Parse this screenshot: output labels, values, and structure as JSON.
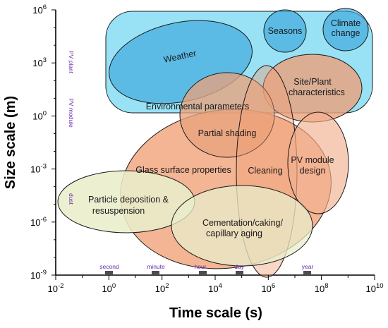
{
  "figure": {
    "xlabel": "Time scale (s)",
    "ylabel": "Size scale (m)"
  },
  "axes": {
    "x_ticks": [
      {
        "base": "10",
        "exp": "-2",
        "value": -2
      },
      {
        "base": "10",
        "exp": "0",
        "value": 0
      },
      {
        "base": "10",
        "exp": "2",
        "value": 2
      },
      {
        "base": "10",
        "exp": "4",
        "value": 4
      },
      {
        "base": "10",
        "exp": "6",
        "value": 6
      },
      {
        "base": "10",
        "exp": "8",
        "value": 8
      },
      {
        "base": "10",
        "exp": "10",
        "value": 10
      }
    ],
    "y_ticks": [
      {
        "base": "10",
        "exp": "6",
        "value": 6
      },
      {
        "base": "10",
        "exp": "3",
        "value": 3
      },
      {
        "base": "10",
        "exp": "0",
        "value": 0
      },
      {
        "base": "10",
        "exp": "-3",
        "value": -3
      },
      {
        "base": "10",
        "exp": "-6",
        "value": -6
      },
      {
        "base": "10",
        "exp": "-9",
        "value": -9
      }
    ],
    "x_range_log10": [
      -2,
      10
    ],
    "y_range_log10": [
      -9,
      6
    ],
    "scale": "log"
  },
  "time_references": [
    {
      "label": "second",
      "log10_s": 0
    },
    {
      "label": "minute",
      "log10_s": 1.78
    },
    {
      "label": "hour",
      "log10_s": 3.56
    },
    {
      "label": "day",
      "log10_s": 4.94
    },
    {
      "label": "year",
      "log10_s": 7.5
    }
  ],
  "size_references": [
    {
      "label": "PV plant",
      "log10_m": 3
    },
    {
      "label": "PV module",
      "log10_m": 0.3
    },
    {
      "label": "dust",
      "log10_m": -5
    }
  ],
  "regions": [
    {
      "id": "environmental",
      "lines": [
        "Environmental parameters"
      ],
      "color": "#45c8ec"
    },
    {
      "id": "weather",
      "lines": [
        "Weather"
      ],
      "color": "#3aa6dc"
    },
    {
      "id": "seasons",
      "lines": [
        "Seasons"
      ],
      "color": "#3aa6dc"
    },
    {
      "id": "climate",
      "lines": [
        "Climate",
        "change"
      ],
      "color": "#3aa6dc"
    },
    {
      "id": "glass",
      "lines": [
        "Glass surface properties"
      ],
      "color": "#f0a076"
    },
    {
      "id": "site",
      "lines": [
        "Site/Plant",
        "characteristics"
      ],
      "color": "#eba17c"
    },
    {
      "id": "shading",
      "lines": [
        "Partial shading"
      ],
      "color": "#e7a37e"
    },
    {
      "id": "cleaning",
      "lines": [
        "Cleaning"
      ],
      "color": "#f0a076"
    },
    {
      "id": "pvmodule",
      "lines": [
        "PV module",
        "design"
      ],
      "color": "#f2b18f"
    },
    {
      "id": "particle",
      "lines": [
        "Particle deposition &",
        "resuspension"
      ],
      "color": "#e9eecb"
    },
    {
      "id": "cementation",
      "lines": [
        "Cementation/caking/",
        "capillary aging"
      ],
      "color": "#e9eecb"
    }
  ]
}
